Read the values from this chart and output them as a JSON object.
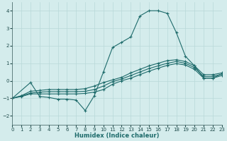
{
  "background_color": "#d4ecec",
  "grid_color": "#b8d8d8",
  "line_color": "#1e6b6b",
  "xlabel": "Humidex (Indice chaleur)",
  "xlim": [
    0,
    23
  ],
  "ylim": [
    -2.5,
    4.5
  ],
  "yticks": [
    -2,
    -1,
    0,
    1,
    2,
    3,
    4
  ],
  "xticks": [
    0,
    1,
    2,
    3,
    4,
    5,
    6,
    7,
    8,
    9,
    10,
    11,
    12,
    13,
    14,
    15,
    16,
    17,
    18,
    19,
    20,
    21,
    22,
    23
  ],
  "curve_spike_x": [
    0,
    2,
    3,
    4,
    5,
    6,
    7,
    8,
    9,
    10,
    11,
    12,
    13,
    14,
    15,
    16,
    17,
    18,
    19,
    20,
    21,
    22,
    23
  ],
  "curve_spike_y": [
    -1.0,
    -0.1,
    -0.9,
    -0.95,
    -1.05,
    -1.05,
    -1.1,
    -1.7,
    -0.85,
    0.5,
    1.9,
    2.2,
    2.5,
    3.7,
    4.0,
    4.0,
    3.85,
    2.75,
    1.4,
    0.85,
    0.15,
    0.15,
    0.4
  ],
  "curve_top_x": [
    0,
    1,
    2,
    3,
    4,
    5,
    6,
    7,
    8,
    9,
    10,
    11,
    12,
    13,
    14,
    15,
    16,
    17,
    18,
    19,
    20,
    21,
    22,
    23
  ],
  "curve_top_y": [
    -1.0,
    -0.85,
    -0.6,
    -0.55,
    -0.5,
    -0.5,
    -0.5,
    -0.5,
    -0.45,
    -0.3,
    -0.1,
    0.05,
    0.2,
    0.45,
    0.65,
    0.85,
    1.0,
    1.15,
    1.2,
    1.1,
    0.85,
    0.35,
    0.35,
    0.45
  ],
  "curve_mid_x": [
    0,
    1,
    2,
    3,
    4,
    5,
    6,
    7,
    8,
    9,
    10,
    11,
    12,
    13,
    14,
    15,
    16,
    17,
    18,
    19,
    20,
    21,
    22,
    23
  ],
  "curve_mid_y": [
    -1.0,
    -0.87,
    -0.7,
    -0.65,
    -0.62,
    -0.62,
    -0.62,
    -0.62,
    -0.6,
    -0.5,
    -0.3,
    -0.05,
    0.1,
    0.3,
    0.5,
    0.7,
    0.85,
    1.0,
    1.1,
    1.0,
    0.75,
    0.25,
    0.25,
    0.38
  ],
  "curve_bot_x": [
    0,
    1,
    2,
    3,
    4,
    5,
    6,
    7,
    8,
    9,
    10,
    11,
    12,
    13,
    14,
    15,
    16,
    17,
    18,
    19,
    20,
    21,
    22,
    23
  ],
  "curve_bot_y": [
    -1.0,
    -0.9,
    -0.75,
    -0.75,
    -0.75,
    -0.75,
    -0.75,
    -0.75,
    -0.72,
    -0.65,
    -0.5,
    -0.2,
    0.0,
    0.15,
    0.35,
    0.55,
    0.72,
    0.88,
    0.98,
    0.9,
    0.65,
    0.15,
    0.15,
    0.3
  ]
}
